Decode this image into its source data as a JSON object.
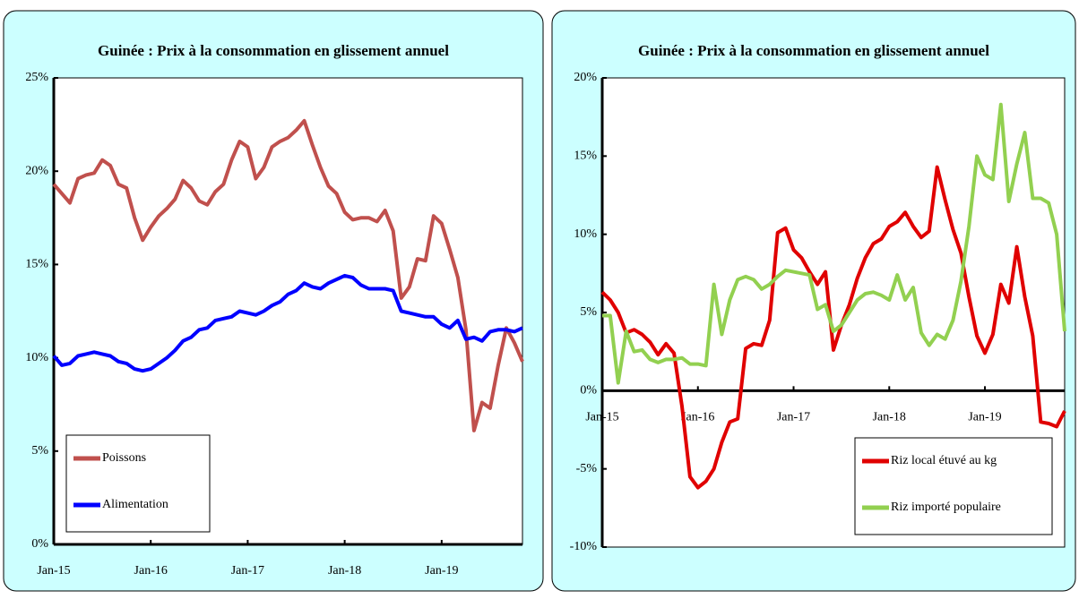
{
  "chart_data": [
    {
      "type": "line",
      "title": "Guinée : Prix à la consommation en glissement annuel",
      "categories": [
        "Jan-15",
        null,
        null,
        null,
        null,
        null,
        null,
        null,
        null,
        null,
        null,
        null,
        "Jan-16",
        null,
        null,
        null,
        null,
        null,
        null,
        null,
        null,
        null,
        null,
        null,
        "Jan-17",
        null,
        null,
        null,
        null,
        null,
        null,
        null,
        null,
        null,
        null,
        null,
        "Jan-18",
        null,
        null,
        null,
        null,
        null,
        null,
        null,
        null,
        null,
        null,
        null,
        "Jan-19",
        null,
        null,
        null,
        null,
        null,
        null,
        null,
        null,
        null,
        null
      ],
      "series": [
        {
          "name": "Poissons",
          "color": "#c0504d",
          "values": [
            19.3,
            18.8,
            18.3,
            19.6,
            19.8,
            19.9,
            20.6,
            20.3,
            19.3,
            19.1,
            17.5,
            16.3,
            17.0,
            17.6,
            18.0,
            18.5,
            19.5,
            19.1,
            18.4,
            18.2,
            18.9,
            19.3,
            20.6,
            21.6,
            21.3,
            19.6,
            20.2,
            21.3,
            21.6,
            21.8,
            22.2,
            22.7,
            21.4,
            20.2,
            19.2,
            18.8,
            17.8,
            17.4,
            17.5,
            17.5,
            17.3,
            17.9,
            16.8,
            13.2,
            13.8,
            15.3,
            15.2,
            17.6,
            17.2,
            15.8,
            14.3,
            11.5,
            6.1,
            7.6,
            7.3,
            9.6,
            11.6,
            10.8,
            9.8
          ]
        },
        {
          "name": "Alimentation",
          "color": "#0000ff",
          "values": [
            10.1,
            9.6,
            9.7,
            10.1,
            10.2,
            10.3,
            10.2,
            10.1,
            9.8,
            9.7,
            9.4,
            9.3,
            9.4,
            9.7,
            10.0,
            10.4,
            10.9,
            11.1,
            11.5,
            11.6,
            12.0,
            12.1,
            12.2,
            12.5,
            12.4,
            12.3,
            12.5,
            12.8,
            13.0,
            13.4,
            13.6,
            14.0,
            13.8,
            13.7,
            14.0,
            14.2,
            14.4,
            14.3,
            13.9,
            13.7,
            13.7,
            13.7,
            13.6,
            12.5,
            12.4,
            12.3,
            12.2,
            12.2,
            11.8,
            11.6,
            12.0,
            11.0,
            11.1,
            10.9,
            11.4,
            11.5,
            11.5,
            11.4,
            11.6
          ]
        }
      ],
      "ylim": [
        0,
        25
      ],
      "yticks": [
        {
          "value": 0,
          "label": "0%"
        },
        {
          "value": 5,
          "label": "5%"
        },
        {
          "value": 10,
          "label": "10%"
        },
        {
          "value": 15,
          "label": "15%"
        },
        {
          "value": 20,
          "label": "20%"
        },
        {
          "value": 25,
          "label": "25%"
        }
      ],
      "legend": "lower left"
    },
    {
      "type": "line",
      "title": "Guinée : Prix à la consommation en glissement annuel",
      "categories": [
        "Jan-15",
        null,
        null,
        null,
        null,
        null,
        null,
        null,
        null,
        null,
        null,
        null,
        "Jan-16",
        null,
        null,
        null,
        null,
        null,
        null,
        null,
        null,
        null,
        null,
        null,
        "Jan-17",
        null,
        null,
        null,
        null,
        null,
        null,
        null,
        null,
        null,
        null,
        null,
        "Jan-18",
        null,
        null,
        null,
        null,
        null,
        null,
        null,
        null,
        null,
        null,
        null,
        "Jan-19",
        null,
        null,
        null,
        null,
        null,
        null,
        null,
        null,
        null,
        null
      ],
      "series": [
        {
          "name": "Riz local étuvé au kg",
          "color": "#e00000",
          "values": [
            6.3,
            5.8,
            5.0,
            3.7,
            3.9,
            3.6,
            3.1,
            2.3,
            3.0,
            2.4,
            -1.0,
            -5.5,
            -6.2,
            -5.8,
            -5.0,
            -3.3,
            -2.0,
            -1.8,
            2.7,
            3.0,
            2.9,
            4.5,
            10.1,
            10.4,
            9.0,
            8.5,
            7.6,
            6.8,
            7.6,
            2.6,
            4.2,
            5.5,
            7.2,
            8.5,
            9.4,
            9.7,
            10.5,
            10.8,
            11.4,
            10.5,
            9.8,
            10.2,
            14.3,
            12.2,
            10.3,
            8.8,
            6.0,
            3.5,
            2.4,
            3.6,
            6.8,
            5.6,
            9.2,
            6.0,
            3.5,
            -2.0,
            -2.1,
            -2.3,
            -1.3
          ]
        },
        {
          "name": "Riz importé populaire",
          "color": "#92d050",
          "values": [
            4.8,
            4.8,
            0.5,
            3.8,
            2.5,
            2.6,
            2.0,
            1.8,
            2.0,
            2.0,
            2.1,
            1.7,
            1.7,
            1.6,
            6.8,
            3.6,
            5.8,
            7.1,
            7.3,
            7.1,
            6.5,
            6.8,
            7.3,
            7.7,
            7.6,
            7.5,
            7.4,
            5.2,
            5.5,
            3.8,
            4.2,
            5.0,
            5.8,
            6.2,
            6.3,
            6.1,
            5.8,
            7.4,
            5.8,
            6.6,
            3.7,
            2.9,
            3.6,
            3.3,
            4.5,
            7.0,
            10.5,
            15.0,
            13.8,
            13.5,
            18.3,
            12.1,
            14.5,
            16.5,
            12.3,
            12.3,
            12.0,
            10.0,
            3.8
          ]
        }
      ],
      "ylim": [
        -10,
        20
      ],
      "yticks": [
        {
          "value": -10,
          "label": "-10%"
        },
        {
          "value": -5,
          "label": "-5%"
        },
        {
          "value": 0,
          "label": "0%"
        },
        {
          "value": 5,
          "label": "5%"
        },
        {
          "value": 10,
          "label": "10%"
        },
        {
          "value": 15,
          "label": "15%"
        },
        {
          "value": 20,
          "label": "20%"
        }
      ],
      "legend": "lower right"
    }
  ]
}
